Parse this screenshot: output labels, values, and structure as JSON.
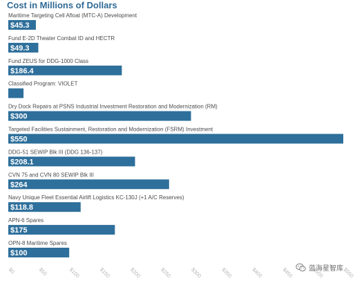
{
  "chart_data": {
    "type": "bar",
    "orientation": "horizontal",
    "title": "Cost in Millions of Dollars",
    "categories": [
      "Maritime Targeting Cell Afloat (MTC-A) Development",
      "Fund E-2D Theater Combat ID and HECTR",
      "Fund ZEUS for DDG-1000 Class",
      "Classified Program: VIOLET",
      "Dry Dock Repairs at PSNS Industrial Investment Restoration and Modernization (RM)",
      "Targeted Facilities Sustainment, Restoration and Modernization (FSRM) Investment",
      "DDG-51 SEWIP Blk III (DDG 136-137)",
      "CVN 75 and CVN 80 SEWIP Blk III",
      "Navy Unique Fleet Essential Airlift Logistics KC-130J (+1 A/C Reserves)",
      "APN-6 Spares",
      "OPN-8 Maritime Spares"
    ],
    "values": [
      45.3,
      49.3,
      186.4,
      25,
      300,
      550,
      208.1,
      264,
      118.8,
      175,
      100
    ],
    "value_labels": [
      "$45.3",
      "$49.3",
      "$186.4",
      "",
      "$300",
      "$550",
      "$208.1",
      "$264",
      "$118.8",
      "$175",
      "$100"
    ],
    "xlim": [
      0,
      550
    ],
    "x_ticks": [
      "$0",
      "$50",
      "$100",
      "$150",
      "$200",
      "$250",
      "$300",
      "$350",
      "$400",
      "$450",
      "$500",
      "$550"
    ],
    "x_tick_values": [
      0,
      50,
      100,
      150,
      200,
      250,
      300,
      350,
      400,
      450,
      500,
      550
    ],
    "grid": false,
    "bar_color": "#2e6f9b",
    "title_color": "#2f6a95"
  },
  "watermark": {
    "text": "蓝海星智库"
  }
}
